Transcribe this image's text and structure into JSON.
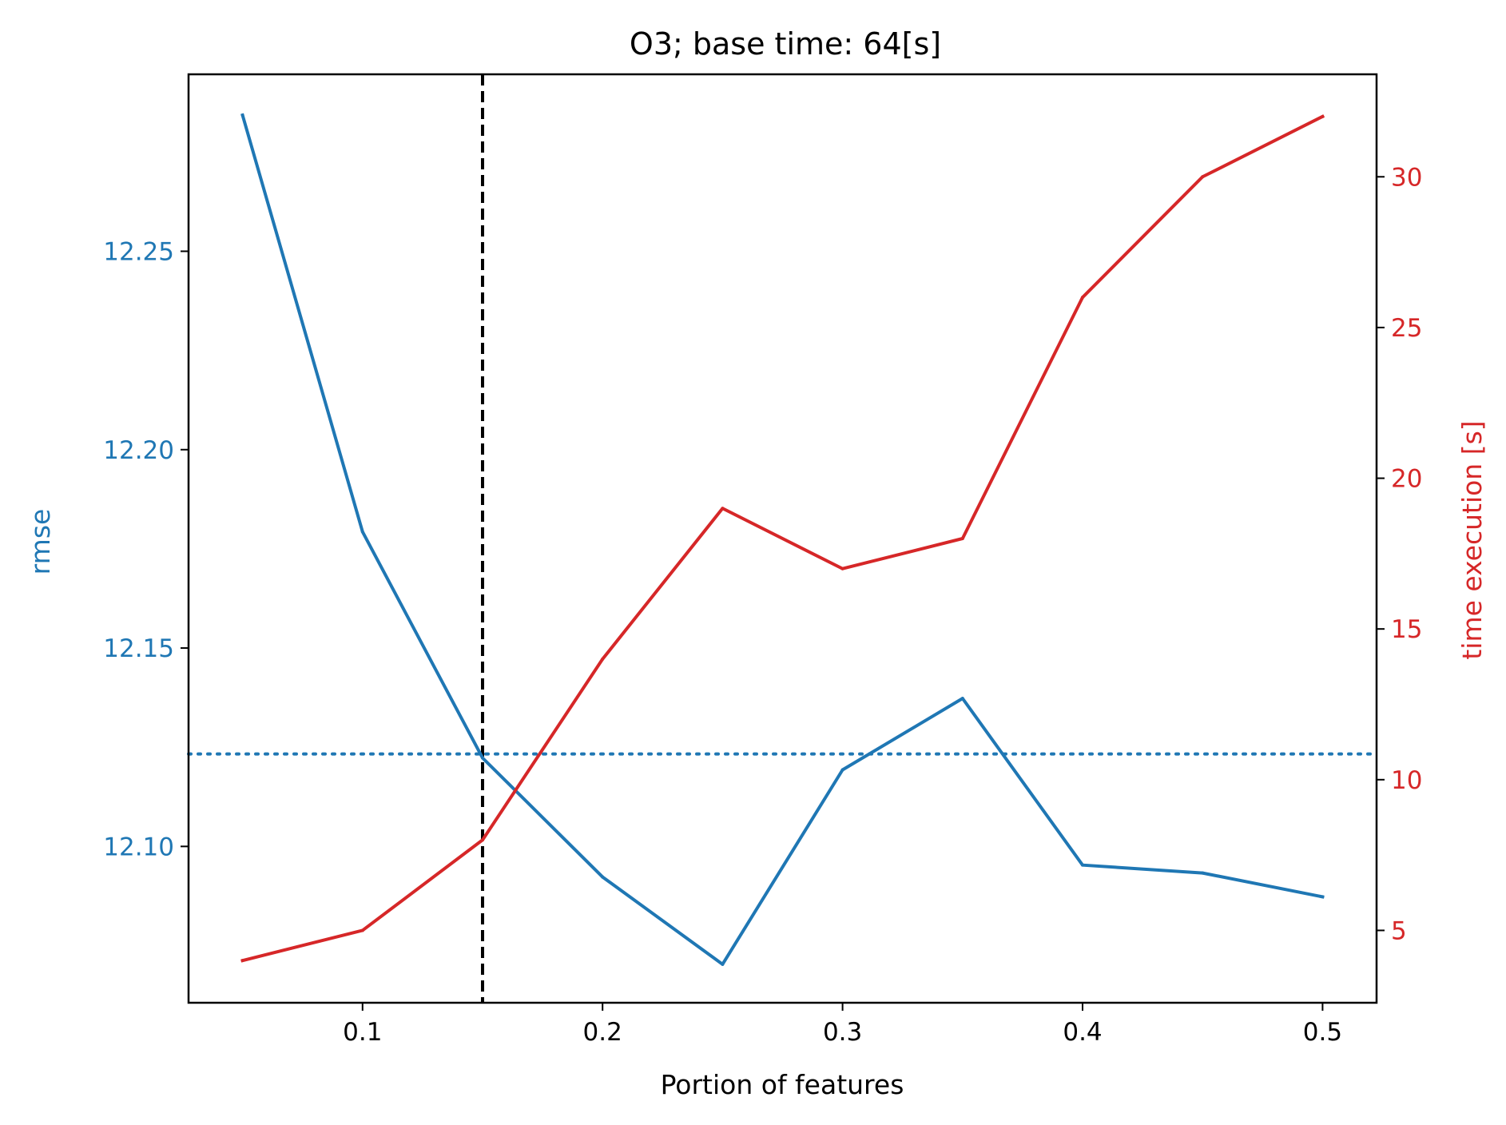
{
  "chart_data": {
    "type": "line",
    "title": "O3; base time: 64[s]",
    "xlabel": "Portion of features",
    "ylabel_left": "rmse",
    "ylabel_right": "time execution [s]",
    "x": [
      0.05,
      0.1,
      0.15,
      0.2,
      0.25,
      0.3,
      0.35,
      0.4,
      0.45,
      0.5
    ],
    "xlim": [
      0.0275,
      0.5225
    ],
    "ylim_left": [
      12.0606,
      12.2946
    ],
    "ylim_right": [
      2.6,
      33.4
    ],
    "xticks": [
      {
        "value": 0.1,
        "label": "0.1"
      },
      {
        "value": 0.2,
        "label": "0.2"
      },
      {
        "value": 0.3,
        "label": "0.3"
      },
      {
        "value": 0.4,
        "label": "0.4"
      },
      {
        "value": 0.5,
        "label": "0.5"
      }
    ],
    "yticks_left": [
      {
        "value": 12.1,
        "label": "12.10"
      },
      {
        "value": 12.15,
        "label": "12.15"
      },
      {
        "value": 12.2,
        "label": "12.20"
      },
      {
        "value": 12.25,
        "label": "12.25"
      }
    ],
    "yticks_right": [
      {
        "value": 5,
        "label": "5"
      },
      {
        "value": 10,
        "label": "10"
      },
      {
        "value": 15,
        "label": "15"
      },
      {
        "value": 20,
        "label": "20"
      },
      {
        "value": 25,
        "label": "25"
      },
      {
        "value": 30,
        "label": "30"
      }
    ],
    "series": [
      {
        "axis": "left",
        "color": "#1f77b4",
        "style": "solid",
        "values": [
          12.2843,
          12.1793,
          12.1223,
          12.0923,
          12.0703,
          12.1193,
          12.1373,
          12.0953,
          12.0933,
          12.0873
        ]
      },
      {
        "axis": "right",
        "color": "#d62728",
        "style": "solid",
        "values": [
          4.0,
          5.0,
          8.0,
          14.0,
          19.0,
          17.0,
          18.0,
          26.0,
          30.0,
          32.0
        ]
      }
    ],
    "reference_lines": [
      {
        "orientation": "horizontal",
        "axis": "left",
        "value": 12.1233,
        "color": "#1f77b4",
        "style": "dotted"
      },
      {
        "orientation": "vertical",
        "value": 0.15,
        "color": "#000000",
        "style": "dashed"
      }
    ],
    "grid": false,
    "legend": "none"
  },
  "colors": {
    "left_axis": "#1f77b4",
    "right_axis": "#d62728",
    "frame": "#000000"
  }
}
